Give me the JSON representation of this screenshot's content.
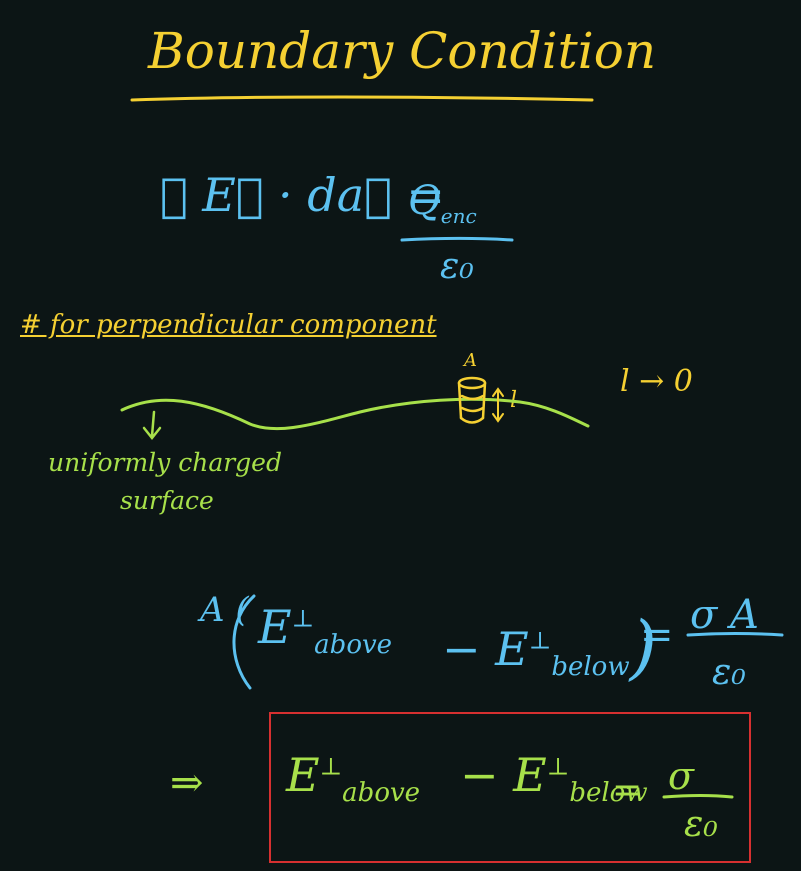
{
  "title": "Boundary Condition",
  "gauss_law": {
    "lhs": "∮ E⃗ · da⃗ =",
    "numerator": "Q",
    "numerator_sub": "enc",
    "denominator": "ε₀"
  },
  "note": "# for perpendicular component",
  "limit": "l → 0",
  "pillbox_labels": {
    "area": "A",
    "height": "l"
  },
  "surface_label": [
    "uniformly charged",
    "surface"
  ],
  "boundary_equation": {
    "lhs_prefix": "A (",
    "term1": "E",
    "term1_sup": "⊥",
    "term1_sub": "above",
    "term2": "− E",
    "term2_sup": "⊥",
    "term2_sub": "below",
    "close_paren": ")",
    "equals": "=",
    "numerator": "σ A",
    "denominator": "ε₀"
  },
  "final_result": {
    "implies": "⇒",
    "term1": "E",
    "term1_sup": "⊥",
    "term1_sub": "above",
    "term2": "− E",
    "term2_sup": "⊥",
    "term2_sub": "below",
    "equals": "=",
    "numerator": "σ",
    "denominator": "ε₀"
  },
  "colors": {
    "background": "#0c1515",
    "title": "#f5d032",
    "equations": "#5cc1f0",
    "result": "#a7e04a",
    "box": "#d63030"
  }
}
